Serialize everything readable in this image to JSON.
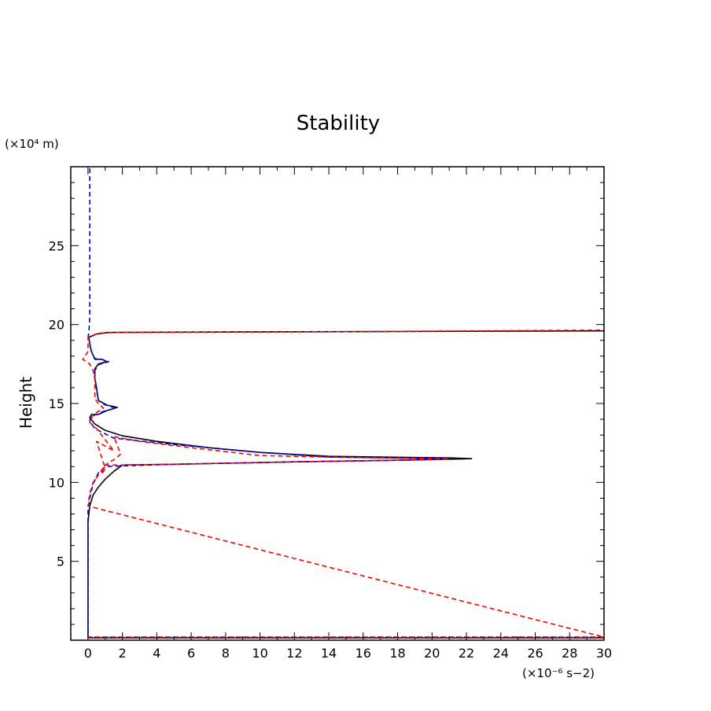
{
  "chart_data": {
    "type": "line",
    "title": "Stability",
    "ylabel": "Height",
    "xlabel": "",
    "x_unit": "(×10⁻⁶ s−2)",
    "y_unit": "(×10⁴ m)",
    "xlim": [
      -1,
      30
    ],
    "ylim": [
      0,
      30
    ],
    "xticks": [
      0,
      2,
      4,
      6,
      8,
      10,
      12,
      14,
      16,
      18,
      20,
      22,
      24,
      26,
      28,
      30
    ],
    "yticks": [
      5,
      10,
      15,
      20,
      25
    ],
    "grid": false,
    "legend": "none",
    "series": [
      {
        "color": "#000000",
        "dash": "solid",
        "points": [
          [
            0,
            0.15
          ],
          [
            30,
            0.15
          ],
          [
            30,
            0.15
          ],
          [
            0,
            0.15
          ],
          [
            0,
            7.5
          ],
          [
            0.1,
            8.5
          ],
          [
            0.3,
            9.2
          ],
          [
            0.6,
            9.7
          ],
          [
            1.0,
            10.2
          ],
          [
            1.5,
            10.7
          ],
          [
            2.0,
            11.1
          ],
          [
            5,
            11.15
          ],
          [
            12,
            11.3
          ],
          [
            18,
            11.4
          ],
          [
            22.3,
            11.5
          ],
          [
            21,
            11.55
          ],
          [
            14,
            11.65
          ],
          [
            10,
            11.9
          ],
          [
            7,
            12.2
          ],
          [
            4,
            12.6
          ],
          [
            2,
            12.95
          ],
          [
            1.0,
            13.3
          ],
          [
            0.4,
            13.7
          ],
          [
            0.1,
            14.1
          ],
          [
            0.2,
            14.3
          ],
          [
            0.6,
            14.3
          ],
          [
            1.1,
            14.55
          ],
          [
            1.7,
            14.75
          ],
          [
            1.1,
            14.9
          ],
          [
            0.6,
            15.2
          ],
          [
            0.5,
            16.0
          ],
          [
            0.4,
            16.6
          ],
          [
            0.4,
            17.2
          ],
          [
            0.6,
            17.5
          ],
          [
            1.1,
            17.65
          ],
          [
            0.8,
            17.8
          ],
          [
            0.4,
            17.8
          ],
          [
            0.2,
            18.3
          ],
          [
            0.1,
            18.8
          ],
          [
            0.05,
            19.2
          ],
          [
            0.5,
            19.4
          ],
          [
            1.2,
            19.5
          ],
          [
            5,
            19.52
          ],
          [
            15,
            19.55
          ],
          [
            24,
            19.58
          ],
          [
            30,
            19.6
          ]
        ]
      },
      {
        "color": "#0000ff",
        "dash": "dashed",
        "points": [
          [
            0.1,
            29.9
          ],
          [
            0.1,
            20.5
          ],
          [
            0.05,
            19.5
          ],
          [
            0,
            19.2
          ],
          [
            0.1,
            18.8
          ],
          [
            0.2,
            18.3
          ],
          [
            0.4,
            17.85
          ],
          [
            0.8,
            17.8
          ],
          [
            1.2,
            17.65
          ],
          [
            0.6,
            17.45
          ],
          [
            0.4,
            17.1
          ],
          [
            0.4,
            16.5
          ],
          [
            0.5,
            15.9
          ],
          [
            0.6,
            15.2
          ],
          [
            0.9,
            14.95
          ],
          [
            1.6,
            14.7
          ],
          [
            0.9,
            14.5
          ],
          [
            0.5,
            14.3
          ],
          [
            0.2,
            14.2
          ],
          [
            0.1,
            13.9
          ],
          [
            0.4,
            13.4
          ],
          [
            1.5,
            12.8
          ],
          [
            5,
            12.4
          ],
          [
            10,
            11.9
          ],
          [
            14,
            11.6
          ],
          [
            21,
            11.5
          ],
          [
            18,
            11.4
          ],
          [
            12,
            11.3
          ],
          [
            5,
            11.15
          ],
          [
            2,
            11.05
          ],
          [
            1.0,
            11.0
          ],
          [
            0.6,
            10.6
          ],
          [
            0.3,
            9.9
          ],
          [
            0.1,
            9.0
          ],
          [
            0,
            8.2
          ],
          [
            0,
            0.2
          ],
          [
            30,
            0.2
          ]
        ]
      },
      {
        "color": "#ff0000",
        "dash": "dashed",
        "points": [
          [
            0,
            0.2
          ],
          [
            30,
            0.2
          ],
          [
            0,
            8.5
          ],
          [
            0.1,
            9.3
          ],
          [
            0.3,
            10.0
          ],
          [
            0.7,
            10.6
          ],
          [
            1.0,
            11.1
          ],
          [
            2.0,
            11.1
          ],
          [
            5,
            11.15
          ],
          [
            12,
            11.3
          ],
          [
            18,
            11.4
          ],
          [
            21,
            11.5
          ],
          [
            14,
            11.6
          ],
          [
            10,
            11.7
          ],
          [
            6,
            12.2
          ],
          [
            3,
            12.6
          ],
          [
            1.5,
            12.9
          ],
          [
            1.9,
            11.8
          ],
          [
            1.6,
            11.5
          ],
          [
            1.2,
            11.25
          ],
          [
            0.9,
            11.0
          ],
          [
            0.8,
            10.5
          ],
          [
            1.0,
            10.9
          ],
          [
            0.5,
            12.6
          ],
          [
            1.0,
            12.3
          ],
          [
            1.5,
            12.0
          ],
          [
            0.5,
            13.4
          ],
          [
            0.1,
            13.8
          ],
          [
            0.3,
            14.3
          ],
          [
            0.9,
            14.7
          ],
          [
            0.6,
            15.0
          ],
          [
            0.4,
            15.3
          ],
          [
            0.4,
            16.5
          ],
          [
            0.3,
            17.1
          ],
          [
            0.1,
            17.5
          ],
          [
            -0.3,
            17.8
          ],
          [
            0,
            18.3
          ],
          [
            0,
            19.2
          ],
          [
            0.6,
            19.45
          ],
          [
            1.5,
            19.5
          ],
          [
            15,
            19.55
          ],
          [
            30,
            19.65
          ]
        ]
      }
    ]
  }
}
